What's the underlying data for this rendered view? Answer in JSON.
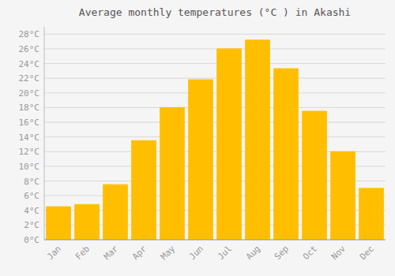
{
  "chart_data": {
    "type": "bar",
    "title": "Average monthly temperatures (°C ) in Akashi",
    "categories": [
      "Jan",
      "Feb",
      "Mar",
      "Apr",
      "May",
      "Jun",
      "Jul",
      "Aug",
      "Sep",
      "Oct",
      "Nov",
      "Dec"
    ],
    "values": [
      4.5,
      4.8,
      7.5,
      13.5,
      18.0,
      21.8,
      26.0,
      27.2,
      23.3,
      17.5,
      12.0,
      7.0
    ],
    "color": "#FFBF00",
    "ylim": [
      0,
      29
    ],
    "yticks": [
      {
        "value": 0,
        "label": "0°C"
      },
      {
        "value": 2,
        "label": "2°C"
      },
      {
        "value": 4,
        "label": "4°C"
      },
      {
        "value": 6,
        "label": "6°C"
      },
      {
        "value": 8,
        "label": "8°C"
      },
      {
        "value": 10,
        "label": "10°C"
      },
      {
        "value": 12,
        "label": "12°C"
      },
      {
        "value": 14,
        "label": "14°C"
      },
      {
        "value": 16,
        "label": "16°C"
      },
      {
        "value": 18,
        "label": "18°C"
      },
      {
        "value": 20,
        "label": "20°C"
      },
      {
        "value": 22,
        "label": "22°C"
      },
      {
        "value": 24,
        "label": "24°C"
      },
      {
        "value": 26,
        "label": "26°C"
      },
      {
        "value": 28,
        "label": "28°C"
      }
    ],
    "grid": true
  }
}
